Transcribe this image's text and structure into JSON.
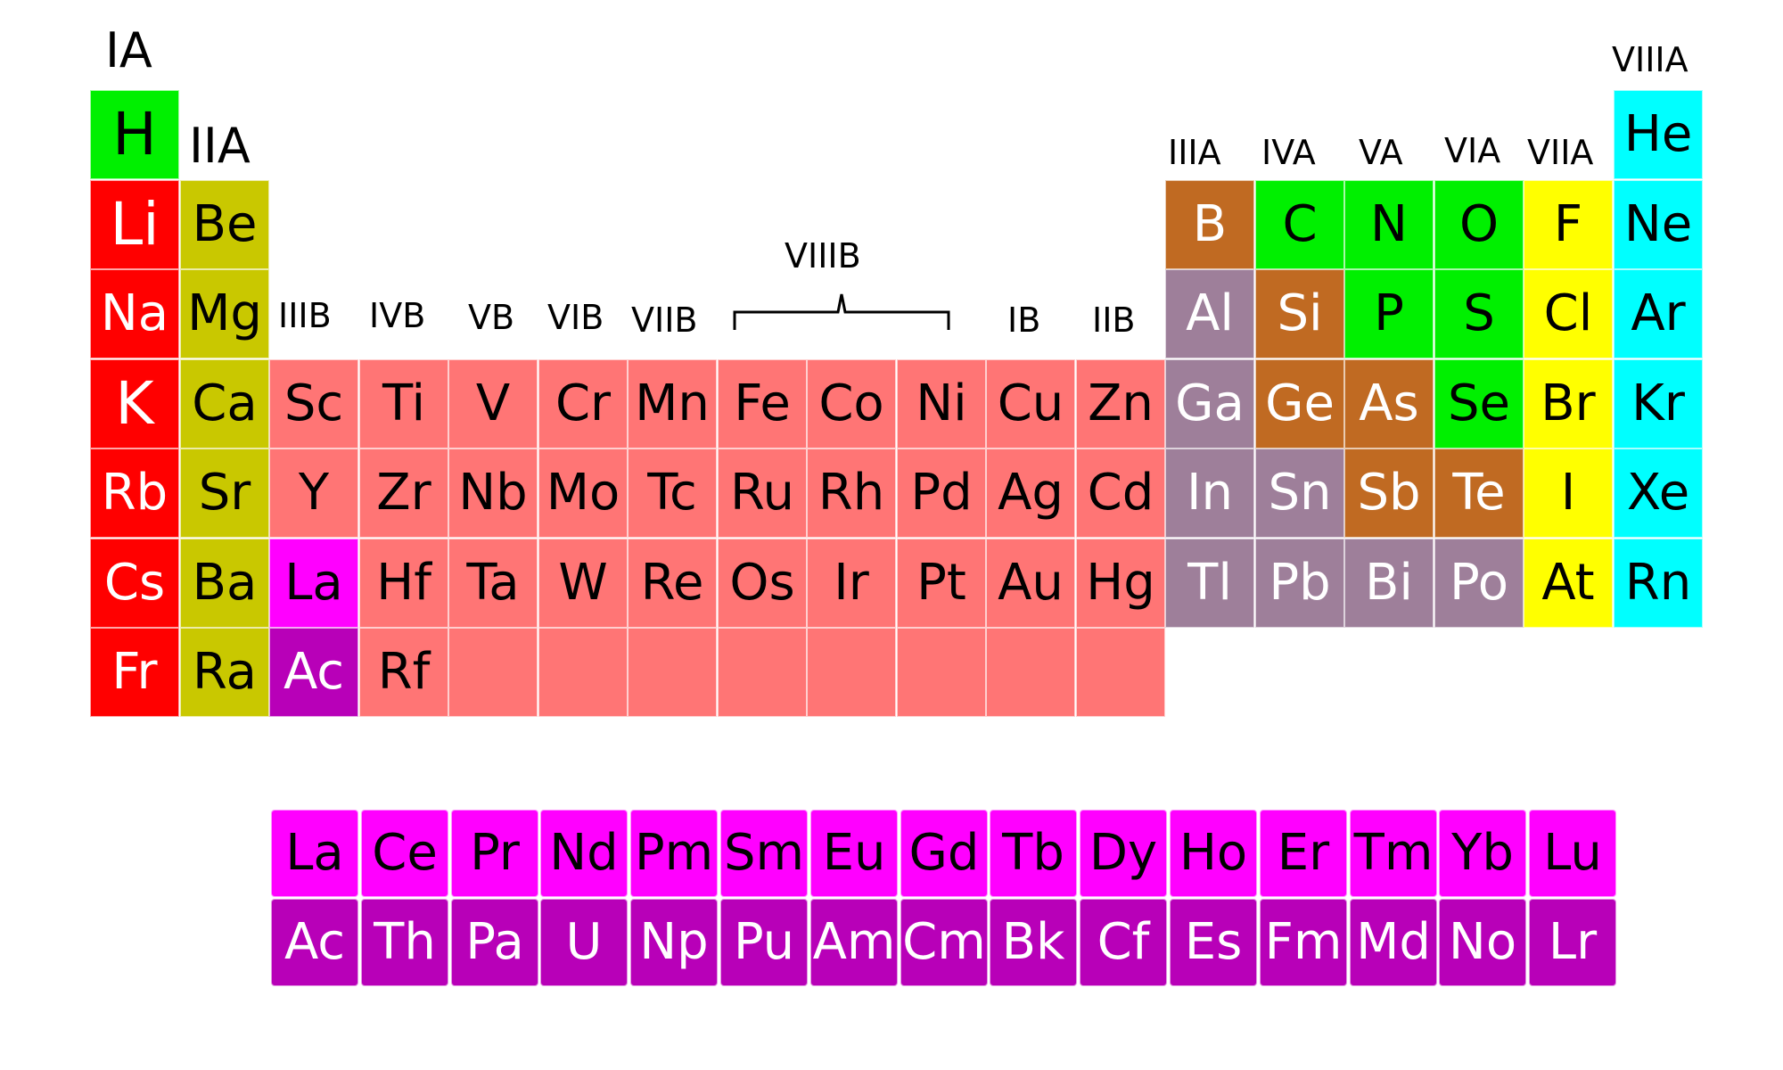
{
  "colors": {
    "alkali": "#ff0000",
    "alkaline_earth": "#c9c800",
    "transition": "#ff7575",
    "post_transition": "#9e7f9a",
    "metalloid": "#c06a22",
    "nonmetal": "#00f000",
    "halogen": "#ffff00",
    "noble_gas": "#00ffff",
    "lanthanide": "#ff00ff",
    "actinide": "#b800b8"
  },
  "group_labels": [
    {
      "text": "IA",
      "size": 54
    },
    {
      "text": "IIA",
      "size": 54
    },
    {
      "text": "IIIB",
      "size": 38
    },
    {
      "text": "IVB",
      "size": 38
    },
    {
      "text": "VB",
      "size": 38
    },
    {
      "text": "VIB",
      "size": 38
    },
    {
      "text": "VIIB",
      "size": 38
    },
    {
      "text": "VIIIB",
      "size": 38
    },
    {
      "text": "IB",
      "size": 38
    },
    {
      "text": "IIB",
      "size": 38
    },
    {
      "text": "IIIA",
      "size": 38
    },
    {
      "text": "IVA",
      "size": 38
    },
    {
      "text": "VA",
      "size": 38
    },
    {
      "text": "VIA",
      "size": 38
    },
    {
      "text": "VIIA",
      "size": 38
    },
    {
      "text": "VIIIA",
      "size": 38
    }
  ],
  "main_elements": [
    {
      "symbol": "H",
      "category": "nonmetal",
      "text_color": "#000000",
      "row": 1,
      "col": 1
    },
    {
      "symbol": "He",
      "category": "noble_gas",
      "text_color": "#000000",
      "row": 1,
      "col": 18
    },
    {
      "symbol": "Li",
      "category": "alkali",
      "text_color": "#ffffff",
      "row": 2,
      "col": 1
    },
    {
      "symbol": "Be",
      "category": "alkaline_earth",
      "text_color": "#000000",
      "row": 2,
      "col": 2
    },
    {
      "symbol": "B",
      "category": "metalloid",
      "text_color": "#ffffff",
      "row": 2,
      "col": 13
    },
    {
      "symbol": "C",
      "category": "nonmetal",
      "text_color": "#000000",
      "row": 2,
      "col": 14
    },
    {
      "symbol": "N",
      "category": "nonmetal",
      "text_color": "#000000",
      "row": 2,
      "col": 15
    },
    {
      "symbol": "O",
      "category": "nonmetal",
      "text_color": "#000000",
      "row": 2,
      "col": 16
    },
    {
      "symbol": "F",
      "category": "halogen",
      "text_color": "#000000",
      "row": 2,
      "col": 17
    },
    {
      "symbol": "Ne",
      "category": "noble_gas",
      "text_color": "#000000",
      "row": 2,
      "col": 18
    },
    {
      "symbol": "Na",
      "category": "alkali",
      "text_color": "#ffffff",
      "row": 3,
      "col": 1
    },
    {
      "symbol": "Mg",
      "category": "alkaline_earth",
      "text_color": "#000000",
      "row": 3,
      "col": 2
    },
    {
      "symbol": "Al",
      "category": "post_transition",
      "text_color": "#ffffff",
      "row": 3,
      "col": 13
    },
    {
      "symbol": "Si",
      "category": "metalloid",
      "text_color": "#ffffff",
      "row": 3,
      "col": 14
    },
    {
      "symbol": "P",
      "category": "nonmetal",
      "text_color": "#000000",
      "row": 3,
      "col": 15
    },
    {
      "symbol": "S",
      "category": "nonmetal",
      "text_color": "#000000",
      "row": 3,
      "col": 16
    },
    {
      "symbol": "Cl",
      "category": "halogen",
      "text_color": "#000000",
      "row": 3,
      "col": 17
    },
    {
      "symbol": "Ar",
      "category": "noble_gas",
      "text_color": "#000000",
      "row": 3,
      "col": 18
    },
    {
      "symbol": "K",
      "category": "alkali",
      "text_color": "#ffffff",
      "row": 4,
      "col": 1
    },
    {
      "symbol": "Ca",
      "category": "alkaline_earth",
      "text_color": "#000000",
      "row": 4,
      "col": 2
    },
    {
      "symbol": "Sc",
      "category": "transition",
      "text_color": "#000000",
      "row": 4,
      "col": 3
    },
    {
      "symbol": "Ti",
      "category": "transition",
      "text_color": "#000000",
      "row": 4,
      "col": 4
    },
    {
      "symbol": "V",
      "category": "transition",
      "text_color": "#000000",
      "row": 4,
      "col": 5
    },
    {
      "symbol": "Cr",
      "category": "transition",
      "text_color": "#000000",
      "row": 4,
      "col": 6
    },
    {
      "symbol": "Mn",
      "category": "transition",
      "text_color": "#000000",
      "row": 4,
      "col": 7
    },
    {
      "symbol": "Fe",
      "category": "transition",
      "text_color": "#000000",
      "row": 4,
      "col": 8
    },
    {
      "symbol": "Co",
      "category": "transition",
      "text_color": "#000000",
      "row": 4,
      "col": 9
    },
    {
      "symbol": "Ni",
      "category": "transition",
      "text_color": "#000000",
      "row": 4,
      "col": 10
    },
    {
      "symbol": "Cu",
      "category": "transition",
      "text_color": "#000000",
      "row": 4,
      "col": 11
    },
    {
      "symbol": "Zn",
      "category": "transition",
      "text_color": "#000000",
      "row": 4,
      "col": 12
    },
    {
      "symbol": "Ga",
      "category": "post_transition",
      "text_color": "#ffffff",
      "row": 4,
      "col": 13
    },
    {
      "symbol": "Ge",
      "category": "metalloid",
      "text_color": "#ffffff",
      "row": 4,
      "col": 14
    },
    {
      "symbol": "As",
      "category": "metalloid",
      "text_color": "#ffffff",
      "row": 4,
      "col": 15
    },
    {
      "symbol": "Se",
      "category": "nonmetal",
      "text_color": "#000000",
      "row": 4,
      "col": 16
    },
    {
      "symbol": "Br",
      "category": "halogen",
      "text_color": "#000000",
      "row": 4,
      "col": 17
    },
    {
      "symbol": "Kr",
      "category": "noble_gas",
      "text_color": "#000000",
      "row": 4,
      "col": 18
    },
    {
      "symbol": "Rb",
      "category": "alkali",
      "text_color": "#ffffff",
      "row": 5,
      "col": 1
    },
    {
      "symbol": "Sr",
      "category": "alkaline_earth",
      "text_color": "#000000",
      "row": 5,
      "col": 2
    },
    {
      "symbol": "Y",
      "category": "transition",
      "text_color": "#000000",
      "row": 5,
      "col": 3
    },
    {
      "symbol": "Zr",
      "category": "transition",
      "text_color": "#000000",
      "row": 5,
      "col": 4
    },
    {
      "symbol": "Nb",
      "category": "transition",
      "text_color": "#000000",
      "row": 5,
      "col": 5
    },
    {
      "symbol": "Mo",
      "category": "transition",
      "text_color": "#000000",
      "row": 5,
      "col": 6
    },
    {
      "symbol": "Tc",
      "category": "transition",
      "text_color": "#000000",
      "row": 5,
      "col": 7
    },
    {
      "symbol": "Ru",
      "category": "transition",
      "text_color": "#000000",
      "row": 5,
      "col": 8
    },
    {
      "symbol": "Rh",
      "category": "transition",
      "text_color": "#000000",
      "row": 5,
      "col": 9
    },
    {
      "symbol": "Pd",
      "category": "transition",
      "text_color": "#000000",
      "row": 5,
      "col": 10
    },
    {
      "symbol": "Ag",
      "category": "transition",
      "text_color": "#000000",
      "row": 5,
      "col": 11
    },
    {
      "symbol": "Cd",
      "category": "transition",
      "text_color": "#000000",
      "row": 5,
      "col": 12
    },
    {
      "symbol": "In",
      "category": "post_transition",
      "text_color": "#ffffff",
      "row": 5,
      "col": 13
    },
    {
      "symbol": "Sn",
      "category": "post_transition",
      "text_color": "#ffffff",
      "row": 5,
      "col": 14
    },
    {
      "symbol": "Sb",
      "category": "metalloid",
      "text_color": "#ffffff",
      "row": 5,
      "col": 15
    },
    {
      "symbol": "Te",
      "category": "metalloid",
      "text_color": "#ffffff",
      "row": 5,
      "col": 16
    },
    {
      "symbol": "I",
      "category": "halogen",
      "text_color": "#000000",
      "row": 5,
      "col": 17
    },
    {
      "symbol": "Xe",
      "category": "noble_gas",
      "text_color": "#000000",
      "row": 5,
      "col": 18
    },
    {
      "symbol": "Cs",
      "category": "alkali",
      "text_color": "#ffffff",
      "row": 6,
      "col": 1
    },
    {
      "symbol": "Ba",
      "category": "alkaline_earth",
      "text_color": "#000000",
      "row": 6,
      "col": 2
    },
    {
      "symbol": "La",
      "category": "lanthanide",
      "text_color": "#000000",
      "row": 6,
      "col": 3
    },
    {
      "symbol": "Hf",
      "category": "transition",
      "text_color": "#000000",
      "row": 6,
      "col": 4
    },
    {
      "symbol": "Ta",
      "category": "transition",
      "text_color": "#000000",
      "row": 6,
      "col": 5
    },
    {
      "symbol": "W",
      "category": "transition",
      "text_color": "#000000",
      "row": 6,
      "col": 6
    },
    {
      "symbol": "Re",
      "category": "transition",
      "text_color": "#000000",
      "row": 6,
      "col": 7
    },
    {
      "symbol": "Os",
      "category": "transition",
      "text_color": "#000000",
      "row": 6,
      "col": 8
    },
    {
      "symbol": "Ir",
      "category": "transition",
      "text_color": "#000000",
      "row": 6,
      "col": 9
    },
    {
      "symbol": "Pt",
      "category": "transition",
      "text_color": "#000000",
      "row": 6,
      "col": 10
    },
    {
      "symbol": "Au",
      "category": "transition",
      "text_color": "#000000",
      "row": 6,
      "col": 11
    },
    {
      "symbol": "Hg",
      "category": "transition",
      "text_color": "#000000",
      "row": 6,
      "col": 12
    },
    {
      "symbol": "Tl",
      "category": "post_transition",
      "text_color": "#ffffff",
      "row": 6,
      "col": 13
    },
    {
      "symbol": "Pb",
      "category": "post_transition",
      "text_color": "#ffffff",
      "row": 6,
      "col": 14
    },
    {
      "symbol": "Bi",
      "category": "post_transition",
      "text_color": "#ffffff",
      "row": 6,
      "col": 15
    },
    {
      "symbol": "Po",
      "category": "post_transition",
      "text_color": "#ffffff",
      "row": 6,
      "col": 16
    },
    {
      "symbol": "At",
      "category": "halogen",
      "text_color": "#000000",
      "row": 6,
      "col": 17
    },
    {
      "symbol": "Rn",
      "category": "noble_gas",
      "text_color": "#000000",
      "row": 6,
      "col": 18
    },
    {
      "symbol": "Fr",
      "category": "alkali",
      "text_color": "#ffffff",
      "row": 7,
      "col": 1
    },
    {
      "symbol": "Ra",
      "category": "alkaline_earth",
      "text_color": "#000000",
      "row": 7,
      "col": 2
    },
    {
      "symbol": "Ac",
      "category": "actinide",
      "text_color": "#ffffff",
      "row": 7,
      "col": 3
    },
    {
      "symbol": "Rf",
      "category": "transition",
      "text_color": "#000000",
      "row": 7,
      "col": 4
    }
  ],
  "empty_transition_cells": [
    5,
    6,
    7,
    8,
    9,
    10,
    11,
    12
  ],
  "lanthanides": [
    "La",
    "Ce",
    "Pr",
    "Nd",
    "Pm",
    "Sm",
    "Eu",
    "Gd",
    "Tb",
    "Dy",
    "Ho",
    "Er",
    "Tm",
    "Yb",
    "Lu"
  ],
  "actinides": [
    "Ac",
    "Th",
    "Pa",
    "U",
    "Np",
    "Pu",
    "Am",
    "Cm",
    "Bk",
    "Cf",
    "Es",
    "Fm",
    "Md",
    "No",
    "Lr"
  ],
  "lanthanide_text_color": "#000000",
  "actinide_text_color": "#ffffff"
}
